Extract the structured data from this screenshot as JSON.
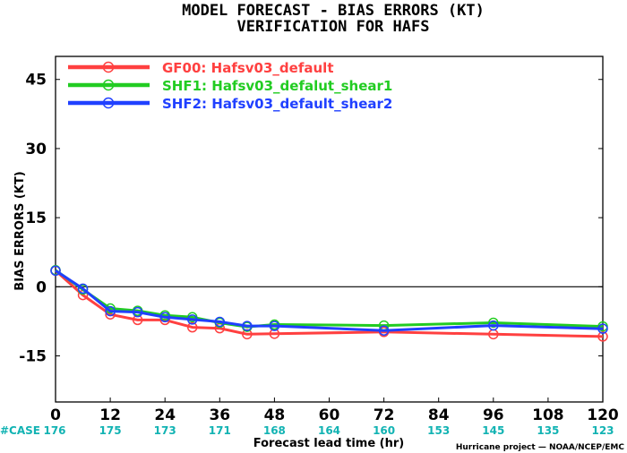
{
  "chart_data": {
    "type": "line",
    "title": "MODEL FORECAST - BIAS ERRORS (KT)",
    "subtitle": "VERIFICATION FOR HAFS",
    "xlabel": "Forecast lead time (hr)",
    "ylabel": "BIAS ERRORS (KT)",
    "xlim": [
      0,
      120
    ],
    "ylim": [
      -25,
      50
    ],
    "x_ticks": [
      0,
      12,
      24,
      36,
      48,
      60,
      72,
      84,
      96,
      108,
      120
    ],
    "y_ticks": [
      -15,
      0,
      15,
      30,
      45
    ],
    "grid": false,
    "zero_line": true,
    "legend_position": "top-left",
    "series": [
      {
        "name": "GF00: Hafsv03_default",
        "color": "#ff4040",
        "x": [
          0,
          6,
          12,
          18,
          24,
          30,
          36,
          42,
          48,
          72,
          96,
          120
        ],
        "y": [
          3.5,
          -1.8,
          -6.0,
          -7.2,
          -7.2,
          -8.8,
          -9.0,
          -10.3,
          -10.2,
          -9.8,
          -10.3,
          -10.8
        ]
      },
      {
        "name": "SHF1: Hafsv03_defalut_shear1",
        "color": "#22cc22",
        "x": [
          0,
          6,
          12,
          18,
          24,
          30,
          36,
          42,
          48,
          72,
          96,
          120
        ],
        "y": [
          3.6,
          -0.6,
          -4.7,
          -5.2,
          -6.2,
          -6.6,
          -7.8,
          -8.7,
          -8.2,
          -8.4,
          -7.8,
          -8.6
        ]
      },
      {
        "name": "SHF2: Hafsv03_default_shear2",
        "color": "#2040ff",
        "x": [
          0,
          6,
          12,
          18,
          24,
          30,
          36,
          42,
          48,
          72,
          96,
          120
        ],
        "y": [
          3.5,
          -0.4,
          -5.3,
          -5.5,
          -6.6,
          -7.1,
          -7.6,
          -8.5,
          -8.5,
          -9.5,
          -8.4,
          -9.1
        ]
      }
    ],
    "case_label": "#CASE",
    "case_counts": [
      {
        "x": 0,
        "label": "176"
      },
      {
        "x": 12,
        "label": "175"
      },
      {
        "x": 24,
        "label": "173"
      },
      {
        "x": 36,
        "label": "171"
      },
      {
        "x": 48,
        "label": "168"
      },
      {
        "x": 60,
        "label": "164"
      },
      {
        "x": 72,
        "label": "160"
      },
      {
        "x": 84,
        "label": "153"
      },
      {
        "x": 96,
        "label": "145"
      },
      {
        "x": 108,
        "label": "135"
      },
      {
        "x": 120,
        "label": "123"
      }
    ],
    "credit": "Hurricane project — NOAA/NCEP/EMC"
  }
}
